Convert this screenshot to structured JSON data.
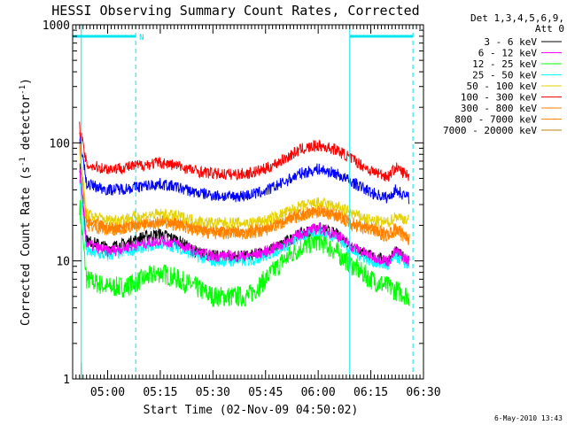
{
  "chart_data": {
    "type": "line",
    "title": "HESSI Observing Summary Count Rates, Corrected",
    "xlabel": "Start Time (02-Nov-09 04:50:02)",
    "ylabel_main": "Corrected Count Rate (s",
    "ylabel_sup1": "-1",
    "ylabel_mid": " detector",
    "ylabel_sup2": "-1",
    "ylabel_end": ")",
    "y_scale": "log",
    "ylim": [
      1,
      1000
    ],
    "y_ticks": [
      {
        "value": 1,
        "label": "1"
      },
      {
        "value": 10,
        "label": "10"
      },
      {
        "value": 100,
        "label": "100"
      },
      {
        "value": 1000,
        "label": "1000"
      }
    ],
    "xlim": [
      "04:50:02",
      "06:30:00"
    ],
    "x_ticks": [
      "05:00",
      "05:15",
      "05:30",
      "05:45",
      "06:00",
      "06:15",
      "06:30"
    ],
    "legend_header": [
      "Det 1,3,4,5,6,9,",
      "Att 0"
    ],
    "legend_position": "right",
    "timestamp": "6-May-2010 13:43",
    "flag_marker_label": "N",
    "flag_color": "#00e5ee",
    "eclipse_boundaries": [
      "04:52:30",
      "05:08:00",
      "06:09:00",
      "06:27:00"
    ],
    "series": [
      {
        "name": "3 - 6 keV",
        "color": "#000000",
        "points": [
          [
            "04:52:00",
            70
          ],
          [
            "04:54:00",
            15
          ],
          [
            "05:00:00",
            13
          ],
          [
            "05:05:00",
            14
          ],
          [
            "05:10:00",
            16
          ],
          [
            "05:15:00",
            17
          ],
          [
            "05:20:00",
            15
          ],
          [
            "05:25:00",
            12
          ],
          [
            "05:30:00",
            11
          ],
          [
            "05:35:00",
            11
          ],
          [
            "05:40:00",
            11
          ],
          [
            "05:45:00",
            12
          ],
          [
            "05:50:00",
            14
          ],
          [
            "05:55:00",
            17
          ],
          [
            "06:00:00",
            19
          ],
          [
            "06:05:00",
            17
          ],
          [
            "06:10:00",
            13
          ],
          [
            "06:15:00",
            11
          ],
          [
            "06:20:00",
            10
          ],
          [
            "06:22:00",
            12
          ],
          [
            "06:26:00",
            10
          ]
        ]
      },
      {
        "name": "6 - 12 keV",
        "color": "#ff00ff",
        "points": [
          [
            "04:52:00",
            60
          ],
          [
            "04:54:00",
            14
          ],
          [
            "05:00:00",
            12
          ],
          [
            "05:05:00",
            13
          ],
          [
            "05:10:00",
            14
          ],
          [
            "05:15:00",
            15
          ],
          [
            "05:20:00",
            14
          ],
          [
            "05:25:00",
            12
          ],
          [
            "05:30:00",
            11
          ],
          [
            "05:35:00",
            11
          ],
          [
            "05:40:00",
            11
          ],
          [
            "05:45:00",
            12
          ],
          [
            "05:50:00",
            14
          ],
          [
            "05:55:00",
            17
          ],
          [
            "06:00:00",
            19
          ],
          [
            "06:05:00",
            17
          ],
          [
            "06:10:00",
            13
          ],
          [
            "06:15:00",
            11
          ],
          [
            "06:20:00",
            10
          ],
          [
            "06:22:00",
            12
          ],
          [
            "06:26:00",
            10
          ]
        ]
      },
      {
        "name": "12 - 25 keV",
        "color": "#00ff00",
        "points": [
          [
            "04:52:00",
            30
          ],
          [
            "04:54:00",
            7
          ],
          [
            "05:00:00",
            6
          ],
          [
            "05:05:00",
            6
          ],
          [
            "05:10:00",
            7
          ],
          [
            "05:15:00",
            8
          ],
          [
            "05:20:00",
            7
          ],
          [
            "05:25:00",
            6
          ],
          [
            "05:30:00",
            5
          ],
          [
            "05:35:00",
            5
          ],
          [
            "05:40:00",
            5
          ],
          [
            "05:45:00",
            7
          ],
          [
            "05:50:00",
            10
          ],
          [
            "05:55:00",
            13
          ],
          [
            "06:00:00",
            15
          ],
          [
            "06:05:00",
            12
          ],
          [
            "06:10:00",
            9
          ],
          [
            "06:15:00",
            7
          ],
          [
            "06:20:00",
            6
          ],
          [
            "06:26:00",
            5
          ]
        ]
      },
      {
        "name": "25 - 50 keV",
        "color": "#00ffff",
        "points": [
          [
            "04:52:00",
            50
          ],
          [
            "04:54:00",
            12
          ],
          [
            "05:00:00",
            11
          ],
          [
            "05:05:00",
            12
          ],
          [
            "05:10:00",
            13
          ],
          [
            "05:15:00",
            14
          ],
          [
            "05:20:00",
            13
          ],
          [
            "05:25:00",
            11
          ],
          [
            "05:30:00",
            10
          ],
          [
            "05:35:00",
            10
          ],
          [
            "05:40:00",
            10
          ],
          [
            "05:45:00",
            11
          ],
          [
            "05:50:00",
            13
          ],
          [
            "05:55:00",
            16
          ],
          [
            "06:00:00",
            18
          ],
          [
            "06:05:00",
            16
          ],
          [
            "06:10:00",
            12
          ],
          [
            "06:15:00",
            10
          ],
          [
            "06:20:00",
            9
          ],
          [
            "06:22:00",
            11
          ],
          [
            "06:26:00",
            9
          ]
        ]
      },
      {
        "name": "50 - 100 keV",
        "color": "#e5d200",
        "points": [
          [
            "04:52:00",
            80
          ],
          [
            "04:54:00",
            25
          ],
          [
            "05:00:00",
            22
          ],
          [
            "05:05:00",
            23
          ],
          [
            "05:10:00",
            24
          ],
          [
            "05:15:00",
            25
          ],
          [
            "05:20:00",
            24
          ],
          [
            "05:25:00",
            22
          ],
          [
            "05:30:00",
            21
          ],
          [
            "05:35:00",
            21
          ],
          [
            "05:40:00",
            21
          ],
          [
            "05:45:00",
            22
          ],
          [
            "05:50:00",
            25
          ],
          [
            "05:55:00",
            29
          ],
          [
            "06:00:00",
            31
          ],
          [
            "06:05:00",
            29
          ],
          [
            "06:10:00",
            25
          ],
          [
            "06:15:00",
            22
          ],
          [
            "06:20:00",
            21
          ],
          [
            "06:22:00",
            24
          ],
          [
            "06:26:00",
            22
          ]
        ]
      },
      {
        "name": "100 - 300 keV",
        "color": "#ff0000",
        "points": [
          [
            "04:52:00",
            140
          ],
          [
            "04:54:00",
            65
          ],
          [
            "05:00:00",
            60
          ],
          [
            "05:05:00",
            62
          ],
          [
            "05:10:00",
            65
          ],
          [
            "05:15:00",
            68
          ],
          [
            "05:20:00",
            64
          ],
          [
            "05:25:00",
            58
          ],
          [
            "05:30:00",
            55
          ],
          [
            "05:35:00",
            54
          ],
          [
            "05:40:00",
            55
          ],
          [
            "05:45:00",
            60
          ],
          [
            "05:50:00",
            72
          ],
          [
            "05:55:00",
            88
          ],
          [
            "06:00:00",
            95
          ],
          [
            "06:05:00",
            88
          ],
          [
            "06:10:00",
            72
          ],
          [
            "06:15:00",
            58
          ],
          [
            "06:20:00",
            52
          ],
          [
            "06:22:00",
            62
          ],
          [
            "06:26:00",
            52
          ]
        ]
      },
      {
        "name": "300 - 800 keV",
        "color": "#ff7f00",
        "points": [
          [
            "04:52:00",
            90
          ],
          [
            "04:54:00",
            22
          ],
          [
            "05:00:00",
            19
          ],
          [
            "05:05:00",
            20
          ],
          [
            "05:10:00",
            21
          ],
          [
            "05:15:00",
            22
          ],
          [
            "05:20:00",
            21
          ],
          [
            "05:25:00",
            19
          ],
          [
            "05:30:00",
            18
          ],
          [
            "05:35:00",
            18
          ],
          [
            "05:40:00",
            18
          ],
          [
            "05:45:00",
            19
          ],
          [
            "05:50:00",
            22
          ],
          [
            "05:55:00",
            25
          ],
          [
            "06:00:00",
            27
          ],
          [
            "06:05:00",
            25
          ],
          [
            "06:10:00",
            21
          ],
          [
            "06:15:00",
            19
          ],
          [
            "06:20:00",
            17
          ],
          [
            "06:22:00",
            19
          ],
          [
            "06:26:00",
            16
          ]
        ]
      },
      {
        "name": "800 - 7000 keV",
        "color": "#ff8c00",
        "points": [
          [
            "04:52:00",
            100
          ],
          [
            "04:54:00",
            20
          ],
          [
            "05:00:00",
            18
          ],
          [
            "05:05:00",
            19
          ],
          [
            "05:10:00",
            20
          ],
          [
            "05:15:00",
            21
          ],
          [
            "05:20:00",
            20
          ],
          [
            "05:25:00",
            18
          ],
          [
            "05:30:00",
            17
          ],
          [
            "05:35:00",
            17
          ],
          [
            "05:40:00",
            17
          ],
          [
            "05:45:00",
            18
          ],
          [
            "05:50:00",
            21
          ],
          [
            "05:55:00",
            24
          ],
          [
            "06:00:00",
            26
          ],
          [
            "06:05:00",
            24
          ],
          [
            "06:10:00",
            20
          ],
          [
            "06:15:00",
            18
          ],
          [
            "06:20:00",
            16
          ],
          [
            "06:22:00",
            18
          ],
          [
            "06:26:00",
            15
          ]
        ]
      },
      {
        "name": "7000 - 20000 keV",
        "color": "#b8860b",
        "points": [
          [
            "04:52:30",
            1
          ]
        ]
      },
      {
        "name": "",
        "color": "#0000ff",
        "legend": false,
        "points": [
          [
            "04:52:00",
            120
          ],
          [
            "04:54:00",
            45
          ],
          [
            "05:00:00",
            40
          ],
          [
            "05:05:00",
            41
          ],
          [
            "05:10:00",
            43
          ],
          [
            "05:15:00",
            45
          ],
          [
            "05:20:00",
            42
          ],
          [
            "05:25:00",
            38
          ],
          [
            "05:30:00",
            36
          ],
          [
            "05:35:00",
            35
          ],
          [
            "05:40:00",
            36
          ],
          [
            "05:45:00",
            39
          ],
          [
            "05:50:00",
            46
          ],
          [
            "05:55:00",
            55
          ],
          [
            "06:00:00",
            60
          ],
          [
            "06:05:00",
            55
          ],
          [
            "06:10:00",
            46
          ],
          [
            "06:15:00",
            38
          ],
          [
            "06:20:00",
            34
          ],
          [
            "06:22:00",
            40
          ],
          [
            "06:26:00",
            34
          ]
        ]
      }
    ]
  }
}
